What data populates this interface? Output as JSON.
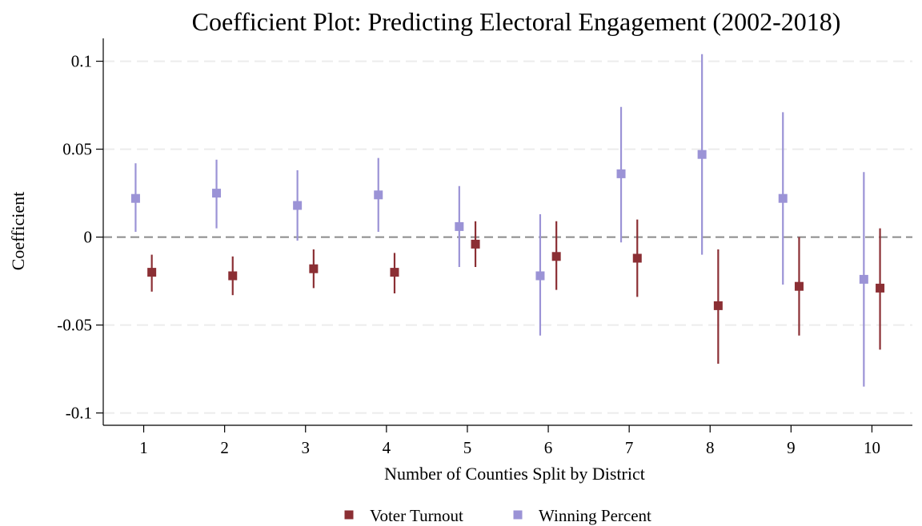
{
  "chart_data": {
    "type": "scatter",
    "title": "Coefficient Plot: Predicting Electoral Engagement (2002-2018)",
    "xlabel": "Number of Counties Split by District",
    "ylabel": "Coefficient",
    "x": [
      1,
      2,
      3,
      4,
      5,
      6,
      7,
      8,
      9,
      10
    ],
    "xlim": [
      0.5,
      10.5
    ],
    "ylim": [
      -0.107,
      0.113
    ],
    "yticks": [
      0.1,
      0.05,
      0,
      -0.05,
      -0.1
    ],
    "ytick_labels": [
      "0.1",
      "0.05",
      "0",
      "-0.05",
      "-0.1"
    ],
    "xtick_labels": [
      "1",
      "2",
      "3",
      "4",
      "5",
      "6",
      "7",
      "8",
      "9",
      "10"
    ],
    "grid": true,
    "reference_line": 0,
    "legend_position": "bottom",
    "series": [
      {
        "name": "Voter Turnout",
        "color": "#8b2f34",
        "offset": 0.1,
        "values": [
          -0.02,
          -0.022,
          -0.018,
          -0.02,
          -0.004,
          -0.011,
          -0.012,
          -0.039,
          -0.028,
          -0.029
        ],
        "ci_low": [
          -0.031,
          -0.033,
          -0.029,
          -0.032,
          -0.017,
          -0.03,
          -0.034,
          -0.072,
          -0.056,
          -0.064
        ],
        "ci_high": [
          -0.01,
          -0.011,
          -0.007,
          -0.009,
          0.009,
          0.009,
          0.01,
          -0.007,
          0.0,
          0.005
        ]
      },
      {
        "name": "Winning Percent",
        "color": "#9b93d6",
        "offset": -0.1,
        "values": [
          0.022,
          0.025,
          0.018,
          0.024,
          0.006,
          -0.022,
          0.036,
          0.047,
          0.022,
          -0.024
        ],
        "ci_low": [
          0.003,
          0.005,
          -0.002,
          0.003,
          -0.017,
          -0.056,
          -0.003,
          -0.01,
          -0.027,
          -0.085
        ],
        "ci_high": [
          0.042,
          0.044,
          0.038,
          0.045,
          0.029,
          0.013,
          0.074,
          0.104,
          0.071,
          0.037
        ]
      }
    ]
  }
}
